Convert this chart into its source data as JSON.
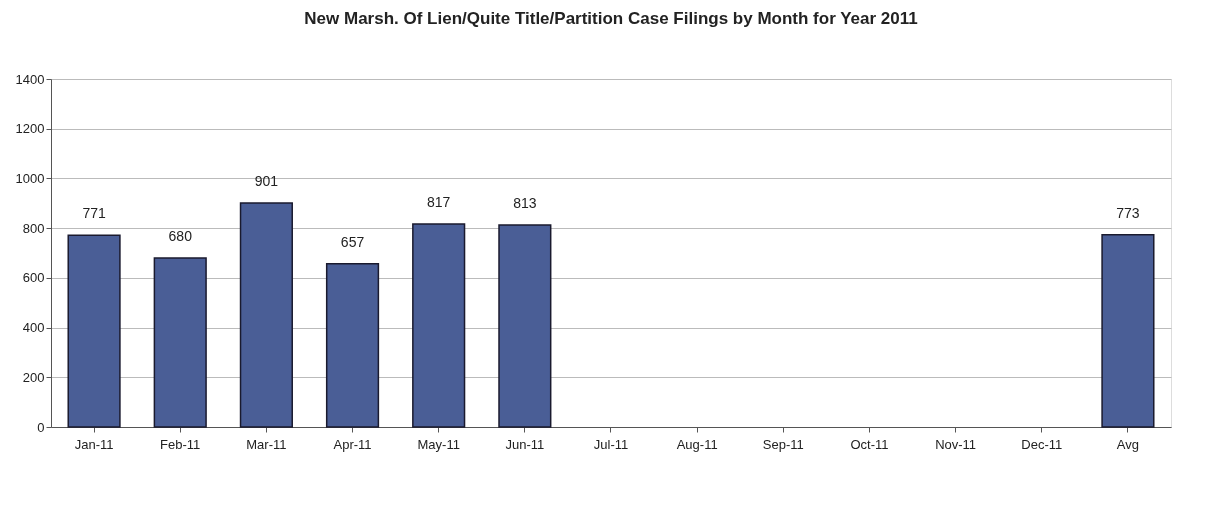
{
  "chart_data": {
    "type": "bar",
    "title": "New Marsh. Of Lien/Quite Title/Partition Case Filings by Month for Year 2011",
    "categories": [
      "Jan-11",
      "Feb-11",
      "Mar-11",
      "Apr-11",
      "May-11",
      "Jun-11",
      "Jul-11",
      "Aug-11",
      "Sep-11",
      "Oct-11",
      "Nov-11",
      "Dec-11",
      "Avg"
    ],
    "values": [
      771,
      680,
      901,
      657,
      817,
      813,
      null,
      null,
      null,
      null,
      null,
      null,
      773
    ],
    "color": "#4a5e96",
    "ylim": [
      0,
      1400
    ],
    "yticks": [
      0,
      200,
      400,
      600,
      800,
      1000,
      1200,
      1400
    ],
    "grid": "y",
    "data_labels": true
  }
}
